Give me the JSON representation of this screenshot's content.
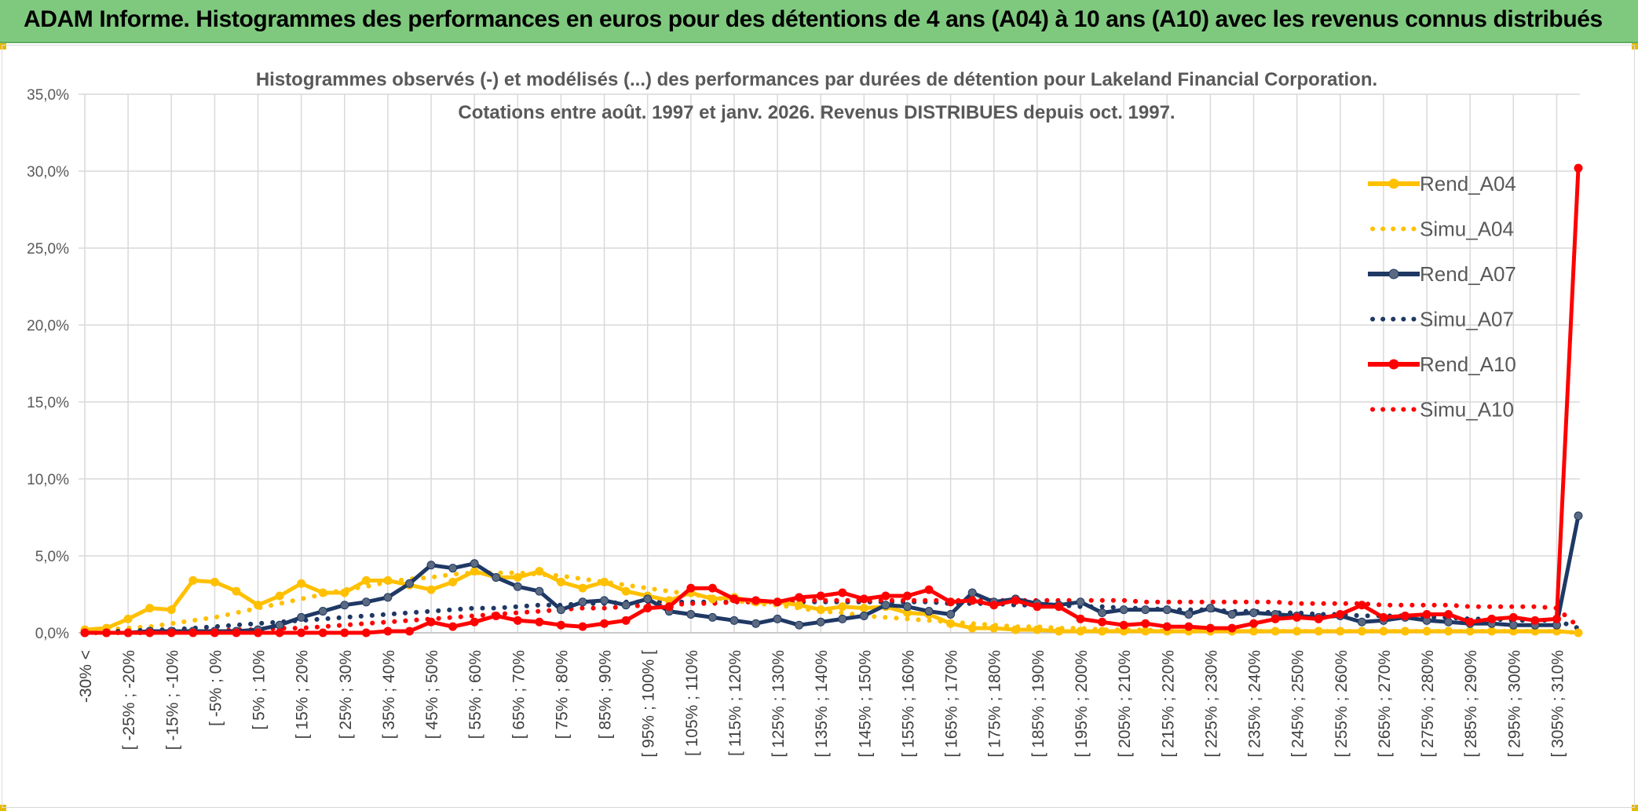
{
  "header": {
    "title": "ADAM Informe. Histogrammes des performances en euros pour des détentions de 4 ans (A04) à 10 ans (A10) avec les revenus connus distribués"
  },
  "chart_data": {
    "type": "line",
    "title": "Histogrammes observés (-) et modélisés (...) des performances par durées de détention pour Lakeland Financial Corporation.",
    "subtitle": "Cotations entre août. 1997 et janv. 2026. Revenus DISTRIBUES depuis oct. 1997.",
    "xlabel": "",
    "ylabel": "",
    "ylim": [
      0,
      35
    ],
    "y_ticks": [
      "0,0%",
      "5,0%",
      "10,0%",
      "15,0%",
      "20,0%",
      "25,0%",
      "30,0%",
      "35,0%"
    ],
    "y_tick_values": [
      0,
      5,
      10,
      15,
      20,
      25,
      30,
      35
    ],
    "grid": true,
    "legend_position": "right",
    "categories_count": 70,
    "x_tick_labels": [
      "-30% <",
      "[ -25% ; -20%",
      "[ -15% ; -10%",
      "[ -5% ; 0%",
      "[ 5% ; 10%",
      "[ 15% ; 20%",
      "[ 25% ; 30%",
      "[ 35% ; 40%",
      "[ 45% ; 50%",
      "[ 55% ; 60%",
      "[ 65% ; 70%",
      "[ 75% ; 80%",
      "[ 85% ; 90%",
      "[ 95% ; 100% [",
      "[ 105% ; 110%",
      "[ 115% ; 120%",
      "[ 125% ; 130%",
      "[ 135% ; 140%",
      "[ 145% ; 150%",
      "[ 155% ; 160%",
      "[ 165% ; 170%",
      "[ 175% ; 180%",
      "[ 185% ; 190%",
      "[ 195% ; 200%",
      "[ 205% ; 210%",
      "[ 215% ; 220%",
      "[ 225% ; 230%",
      "[ 235% ; 240%",
      "[ 245% ; 250%",
      "[ 255% ; 260%",
      "[ 265% ; 270%",
      "[ 275% ; 280%",
      "[ 285% ; 290%",
      "[ 295% ; 300%",
      "[ 305% ; 310%"
    ],
    "x_tick_indices": [
      0,
      2,
      4,
      6,
      8,
      10,
      12,
      14,
      16,
      18,
      20,
      22,
      24,
      26,
      28,
      30,
      32,
      34,
      36,
      38,
      40,
      42,
      44,
      46,
      48,
      50,
      52,
      54,
      56,
      58,
      60,
      62,
      64,
      66,
      68
    ],
    "series": [
      {
        "name": "Rend_A04",
        "style": "solid",
        "markers": true,
        "color": "#ffc000",
        "values": [
          0.2,
          0.3,
          0.9,
          1.6,
          1.5,
          3.4,
          3.3,
          2.7,
          1.8,
          2.4,
          3.2,
          2.6,
          2.6,
          3.4,
          3.4,
          3.1,
          2.8,
          3.3,
          4.0,
          3.6,
          3.6,
          4.0,
          3.3,
          2.9,
          3.3,
          2.7,
          2.4,
          2.1,
          2.6,
          2.2,
          2.3,
          2.0,
          2.0,
          1.8,
          1.5,
          1.7,
          1.6,
          1.7,
          1.3,
          1.2,
          0.6,
          0.3,
          0.3,
          0.2,
          0.2,
          0.1,
          0.1,
          0.1,
          0.1,
          0.1,
          0.1,
          0.1,
          0.1,
          0.1,
          0.1,
          0.1,
          0.1,
          0.1,
          0.1,
          0.1,
          0.1,
          0.1,
          0.1,
          0.1,
          0.1,
          0.1,
          0.1,
          0.1,
          0.1,
          0.0
        ]
      },
      {
        "name": "Simu_A04",
        "style": "dotted",
        "markers": false,
        "color": "#ffc000",
        "values": [
          0.1,
          0.2,
          0.3,
          0.4,
          0.6,
          0.8,
          1.0,
          1.3,
          1.6,
          1.9,
          2.2,
          2.5,
          2.8,
          3.0,
          3.3,
          3.5,
          3.6,
          3.8,
          3.9,
          3.9,
          3.9,
          3.8,
          3.7,
          3.5,
          3.3,
          3.1,
          2.9,
          2.7,
          2.5,
          2.3,
          2.1,
          1.9,
          1.8,
          1.6,
          1.4,
          1.3,
          1.1,
          1.0,
          0.9,
          0.8,
          0.7,
          0.6,
          0.5,
          0.4,
          0.4,
          0.3,
          0.3,
          0.2,
          0.2,
          0.2,
          0.1,
          0.1,
          0.1,
          0.1,
          0.1,
          0.1,
          0.1,
          0.1,
          0.1,
          0.1,
          0.1,
          0.1,
          0.1,
          0.1,
          0.1,
          0.1,
          0.1,
          0.1,
          0.1,
          0.0
        ]
      },
      {
        "name": "Rend_A07",
        "style": "solid",
        "markers": true,
        "color": "#1f3864",
        "values": [
          0.0,
          0.0,
          0.0,
          0.1,
          0.1,
          0.1,
          0.1,
          0.1,
          0.2,
          0.5,
          1.0,
          1.4,
          1.8,
          2.0,
          2.3,
          3.2,
          4.4,
          4.2,
          4.5,
          3.6,
          3.0,
          2.7,
          1.5,
          2.0,
          2.1,
          1.8,
          2.2,
          1.4,
          1.2,
          1.0,
          0.8,
          0.6,
          0.9,
          0.5,
          0.7,
          0.9,
          1.1,
          1.8,
          1.7,
          1.4,
          1.2,
          2.6,
          2.0,
          2.2,
          1.9,
          1.8,
          2.0,
          1.3,
          1.5,
          1.5,
          1.5,
          1.2,
          1.6,
          1.2,
          1.3,
          1.2,
          1.1,
          1.0,
          1.1,
          0.7,
          0.8,
          1.0,
          0.8,
          0.7,
          0.6,
          0.6,
          0.5,
          0.5,
          0.5,
          7.6
        ]
      },
      {
        "name": "Simu_A07",
        "style": "dotted",
        "markers": false,
        "color": "#1f3864",
        "values": [
          0.0,
          0.1,
          0.1,
          0.2,
          0.2,
          0.3,
          0.4,
          0.5,
          0.6,
          0.7,
          0.8,
          0.9,
          1.0,
          1.1,
          1.2,
          1.3,
          1.4,
          1.5,
          1.6,
          1.6,
          1.7,
          1.8,
          1.8,
          1.9,
          1.9,
          2.0,
          2.0,
          2.0,
          2.0,
          2.0,
          2.0,
          2.0,
          2.0,
          2.0,
          2.0,
          2.0,
          2.0,
          2.0,
          2.0,
          2.0,
          1.9,
          1.9,
          1.9,
          1.8,
          1.8,
          1.8,
          1.7,
          1.7,
          1.6,
          1.6,
          1.5,
          1.5,
          1.5,
          1.4,
          1.4,
          1.3,
          1.3,
          1.2,
          1.2,
          1.1,
          1.1,
          1.1,
          1.0,
          1.0,
          0.9,
          0.9,
          0.8,
          0.8,
          0.8,
          0.3
        ]
      },
      {
        "name": "Rend_A10",
        "style": "solid",
        "markers": true,
        "color": "#ff0000",
        "values": [
          0.0,
          0.0,
          0.0,
          0.0,
          0.0,
          0.0,
          0.0,
          0.0,
          0.0,
          0.0,
          0.0,
          0.0,
          0.0,
          0.0,
          0.1,
          0.1,
          0.7,
          0.4,
          0.7,
          1.1,
          0.8,
          0.7,
          0.5,
          0.4,
          0.6,
          0.8,
          1.6,
          1.7,
          2.9,
          2.9,
          2.2,
          2.1,
          2.0,
          2.3,
          2.4,
          2.6,
          2.2,
          2.4,
          2.4,
          2.8,
          2.0,
          2.1,
          1.8,
          2.1,
          1.7,
          1.7,
          0.9,
          0.7,
          0.5,
          0.6,
          0.4,
          0.4,
          0.3,
          0.3,
          0.6,
          0.9,
          1.0,
          0.9,
          1.2,
          1.8,
          1.0,
          1.1,
          1.2,
          1.2,
          0.7,
          0.9,
          1.0,
          0.8,
          0.9,
          30.2
        ]
      },
      {
        "name": "Simu_A10",
        "style": "dotted",
        "markers": false,
        "color": "#ff0000",
        "values": [
          0.0,
          0.0,
          0.0,
          0.0,
          0.1,
          0.1,
          0.1,
          0.2,
          0.2,
          0.3,
          0.3,
          0.4,
          0.5,
          0.6,
          0.7,
          0.8,
          0.9,
          1.0,
          1.1,
          1.2,
          1.3,
          1.4,
          1.5,
          1.6,
          1.6,
          1.7,
          1.8,
          1.8,
          1.9,
          1.9,
          2.0,
          2.0,
          2.0,
          2.1,
          2.1,
          2.1,
          2.1,
          2.1,
          2.1,
          2.1,
          2.1,
          2.1,
          2.1,
          2.1,
          2.1,
          2.1,
          2.1,
          2.1,
          2.1,
          2.0,
          2.0,
          2.0,
          2.0,
          2.0,
          2.0,
          2.0,
          1.9,
          1.9,
          1.9,
          1.9,
          1.8,
          1.8,
          1.8,
          1.8,
          1.7,
          1.7,
          1.7,
          1.7,
          1.6,
          0.4
        ]
      }
    ]
  },
  "colors": {
    "banner": "#7fc97f",
    "grid": "#d9d9d9",
    "axis_text": "#595959"
  }
}
